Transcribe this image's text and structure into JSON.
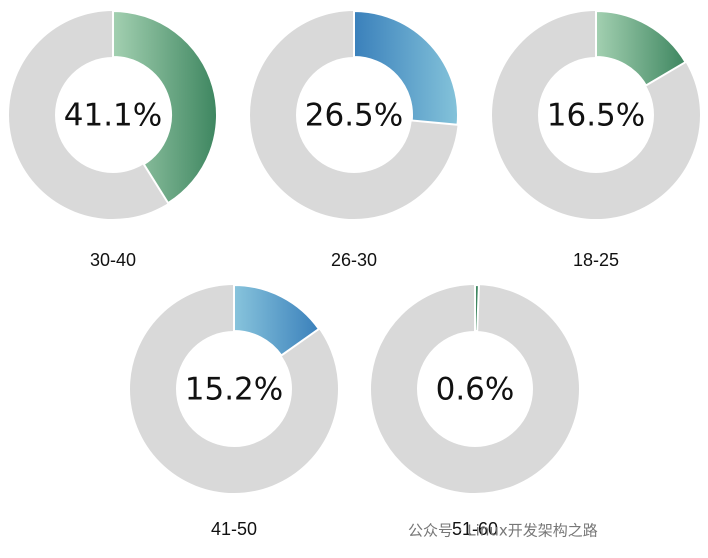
{
  "chart_data": [
    {
      "type": "donut",
      "categories": [
        "30-40"
      ],
      "values": [
        41.1
      ],
      "value_labels": [
        "41.1%"
      ],
      "color": [
        "#a3d0b1",
        "#3e8660"
      ]
    },
    {
      "type": "donut",
      "categories": [
        "26-30"
      ],
      "values": [
        26.5
      ],
      "value_labels": [
        "26.5%"
      ],
      "color": [
        "#3a80bb",
        "#84c3da"
      ]
    },
    {
      "type": "donut",
      "categories": [
        "18-25"
      ],
      "values": [
        16.5
      ],
      "value_labels": [
        "16.5%"
      ],
      "color": [
        "#a3d0b1",
        "#3e8660"
      ]
    },
    {
      "type": "donut",
      "categories": [
        "41-50"
      ],
      "values": [
        15.2
      ],
      "value_labels": [
        "15.2%"
      ],
      "color": [
        "#88c4dc",
        "#3a80bb"
      ]
    },
    {
      "type": "donut",
      "categories": [
        "51-60"
      ],
      "values": [
        0.6
      ],
      "value_labels": [
        "0.6%"
      ],
      "color": [
        "#3e8660",
        "#3e8660"
      ]
    }
  ],
  "watermark": "公众号 · Linux开发架构之路"
}
